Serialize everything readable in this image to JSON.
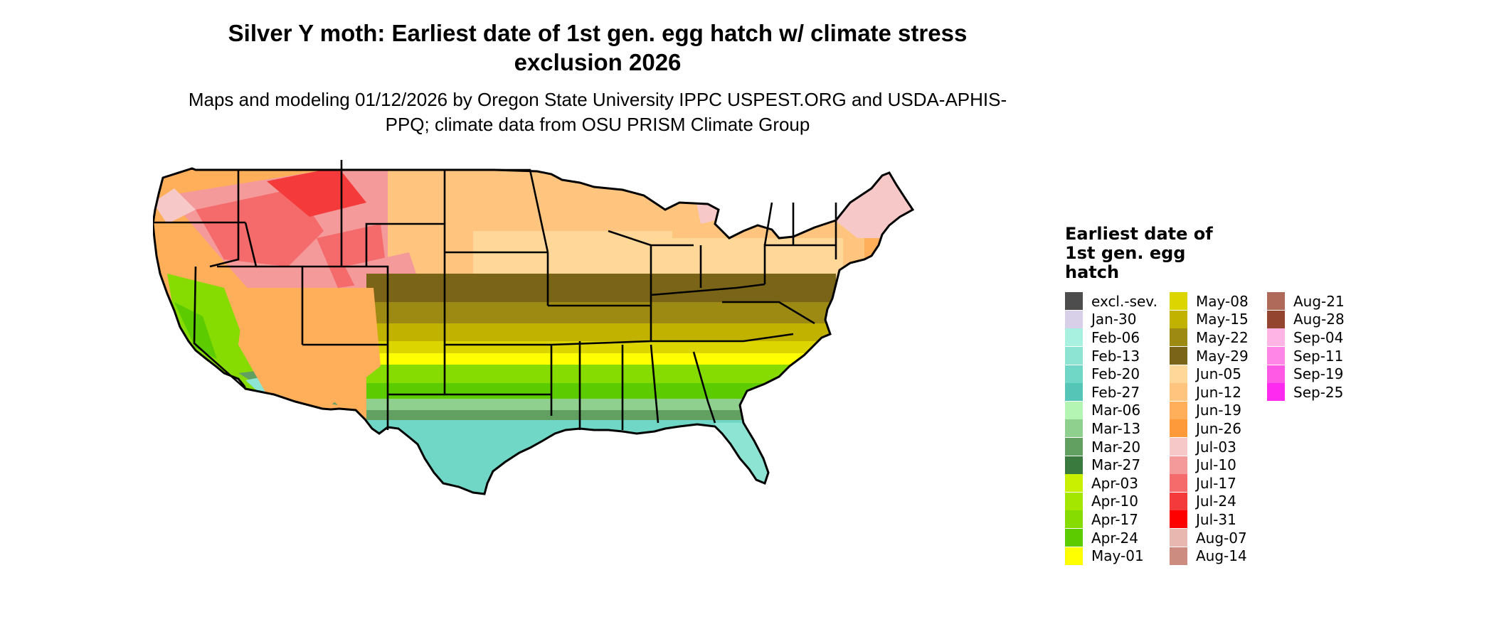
{
  "title": "Silver Y moth: Earliest date of 1st gen. egg hatch w/ climate stress exclusion 2026",
  "subtitle": "Maps and modeling 01/12/2026 by Oregon State University IPPC USPEST.ORG and USDA-APHIS-PPQ; climate data from OSU PRISM Climate Group",
  "legend": {
    "title": "Earliest date of 1st gen. egg hatch",
    "items": [
      {
        "label": "excl.-sev.",
        "color": "#4d4d4d"
      },
      {
        "label": "Jan-30",
        "color": "#d8cfe8"
      },
      {
        "label": "Feb-06",
        "color": "#a8f0e0"
      },
      {
        "label": "Feb-13",
        "color": "#8de4d2"
      },
      {
        "label": "Feb-20",
        "color": "#70d6c6"
      },
      {
        "label": "Feb-27",
        "color": "#55c5b8"
      },
      {
        "label": "Mar-06",
        "color": "#b4f5b4"
      },
      {
        "label": "Mar-13",
        "color": "#8fd08f"
      },
      {
        "label": "Mar-20",
        "color": "#62a062"
      },
      {
        "label": "Mar-27",
        "color": "#3a7a3e"
      },
      {
        "label": "Apr-03",
        "color": "#c8f000"
      },
      {
        "label": "Apr-10",
        "color": "#a5e600"
      },
      {
        "label": "Apr-17",
        "color": "#86dc00"
      },
      {
        "label": "Apr-24",
        "color": "#5ccc00"
      },
      {
        "label": "May-01",
        "color": "#ffff00"
      },
      {
        "label": "May-08",
        "color": "#dcd500"
      },
      {
        "label": "May-15",
        "color": "#c1b200"
      },
      {
        "label": "May-22",
        "color": "#9c8a12"
      },
      {
        "label": "May-29",
        "color": "#7a6418"
      },
      {
        "label": "Jun-05",
        "color": "#ffd899"
      },
      {
        "label": "Jun-12",
        "color": "#ffc57f"
      },
      {
        "label": "Jun-19",
        "color": "#ffae5a"
      },
      {
        "label": "Jun-26",
        "color": "#ff9a3a"
      },
      {
        "label": "Jul-03",
        "color": "#f6c8c8"
      },
      {
        "label": "Jul-10",
        "color": "#f49a9a"
      },
      {
        "label": "Jul-17",
        "color": "#f56a6a"
      },
      {
        "label": "Jul-24",
        "color": "#f43a3a"
      },
      {
        "label": "Jul-31",
        "color": "#ff0000"
      },
      {
        "label": "Aug-07",
        "color": "#e8b7b0"
      },
      {
        "label": "Aug-14",
        "color": "#cc8c80"
      },
      {
        "label": "Aug-21",
        "color": "#b06a5a"
      },
      {
        "label": "Aug-28",
        "color": "#94452f"
      },
      {
        "label": "Sep-04",
        "color": "#ffb4e6"
      },
      {
        "label": "Sep-11",
        "color": "#ff86e6"
      },
      {
        "label": "Sep-19",
        "color": "#ff5ae6"
      },
      {
        "label": "Sep-25",
        "color": "#ff2af0"
      }
    ]
  }
}
